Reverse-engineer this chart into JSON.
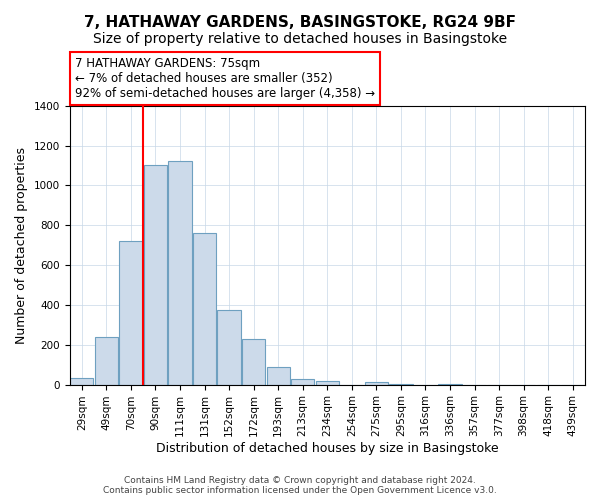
{
  "title": "7, HATHAWAY GARDENS, BASINGSTOKE, RG24 9BF",
  "subtitle": "Size of property relative to detached houses in Basingstoke",
  "xlabel": "Distribution of detached houses by size in Basingstoke",
  "ylabel": "Number of detached properties",
  "bar_labels": [
    "29sqm",
    "49sqm",
    "70sqm",
    "90sqm",
    "111sqm",
    "131sqm",
    "152sqm",
    "172sqm",
    "193sqm",
    "213sqm",
    "234sqm",
    "254sqm",
    "275sqm",
    "295sqm",
    "316sqm",
    "336sqm",
    "357sqm",
    "377sqm",
    "398sqm",
    "418sqm",
    "439sqm"
  ],
  "bar_values": [
    35,
    240,
    720,
    1100,
    1120,
    760,
    375,
    230,
    90,
    30,
    20,
    0,
    15,
    5,
    0,
    5,
    0,
    0,
    0,
    0,
    0
  ],
  "bar_color": "#ccdaea",
  "bar_edge_color": "#6ea0c0",
  "vline_x_index": 2,
  "vline_color": "red",
  "annotation_title": "7 HATHAWAY GARDENS: 75sqm",
  "annotation_line1": "← 7% of detached houses are smaller (352)",
  "annotation_line2": "92% of semi-detached houses are larger (4,358) →",
  "annotation_box_color": "white",
  "annotation_box_edge": "red",
  "ylim": [
    0,
    1400
  ],
  "yticks": [
    0,
    200,
    400,
    600,
    800,
    1000,
    1200,
    1400
  ],
  "footer_line1": "Contains HM Land Registry data © Crown copyright and database right 2024.",
  "footer_line2": "Contains public sector information licensed under the Open Government Licence v3.0.",
  "title_fontsize": 11,
  "xlabel_fontsize": 9,
  "ylabel_fontsize": 9,
  "tick_fontsize": 7.5,
  "footer_fontsize": 6.5,
  "annotation_fontsize": 8.5
}
